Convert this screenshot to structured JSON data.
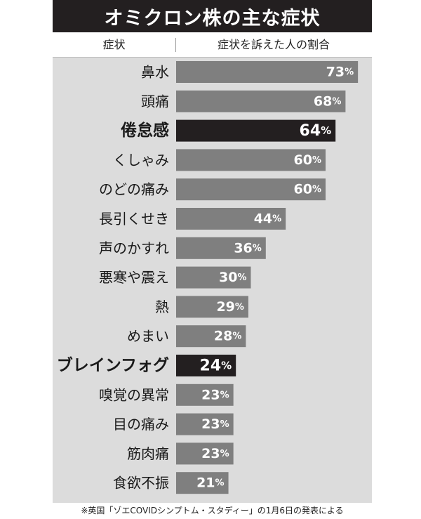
{
  "title": "オミクロン株の主な症状",
  "header": {
    "symptom_col": "症状",
    "rate_col": "症状を訴えた人の割合"
  },
  "footnote": "※英国「ゾエCOVIDシンプトム・スタディー」の1月6日の発表による",
  "colors": {
    "bar": "#7f7f7f",
    "highlight_bar": "#231f20",
    "panel": "#dcdcdc",
    "title_bg": "#231f20"
  },
  "chart_data": {
    "type": "bar",
    "orientation": "horizontal",
    "unit": "%",
    "categories": [
      "鼻水",
      "頭痛",
      "倦怠感",
      "くしゃみ",
      "のどの痛み",
      "長引くせき",
      "声のかすれ",
      "悪寒や震え",
      "熱",
      "めまい",
      "ブレインフォグ",
      "嗅覚の異常",
      "目の痛み",
      "筋肉痛",
      "食欲不振"
    ],
    "values": [
      73,
      68,
      64,
      60,
      60,
      44,
      36,
      30,
      29,
      28,
      24,
      23,
      23,
      23,
      21
    ],
    "highlighted": [
      "倦怠感",
      "ブレインフォグ"
    ],
    "xlim": [
      0,
      100
    ],
    "grid": false,
    "legend": "none"
  }
}
